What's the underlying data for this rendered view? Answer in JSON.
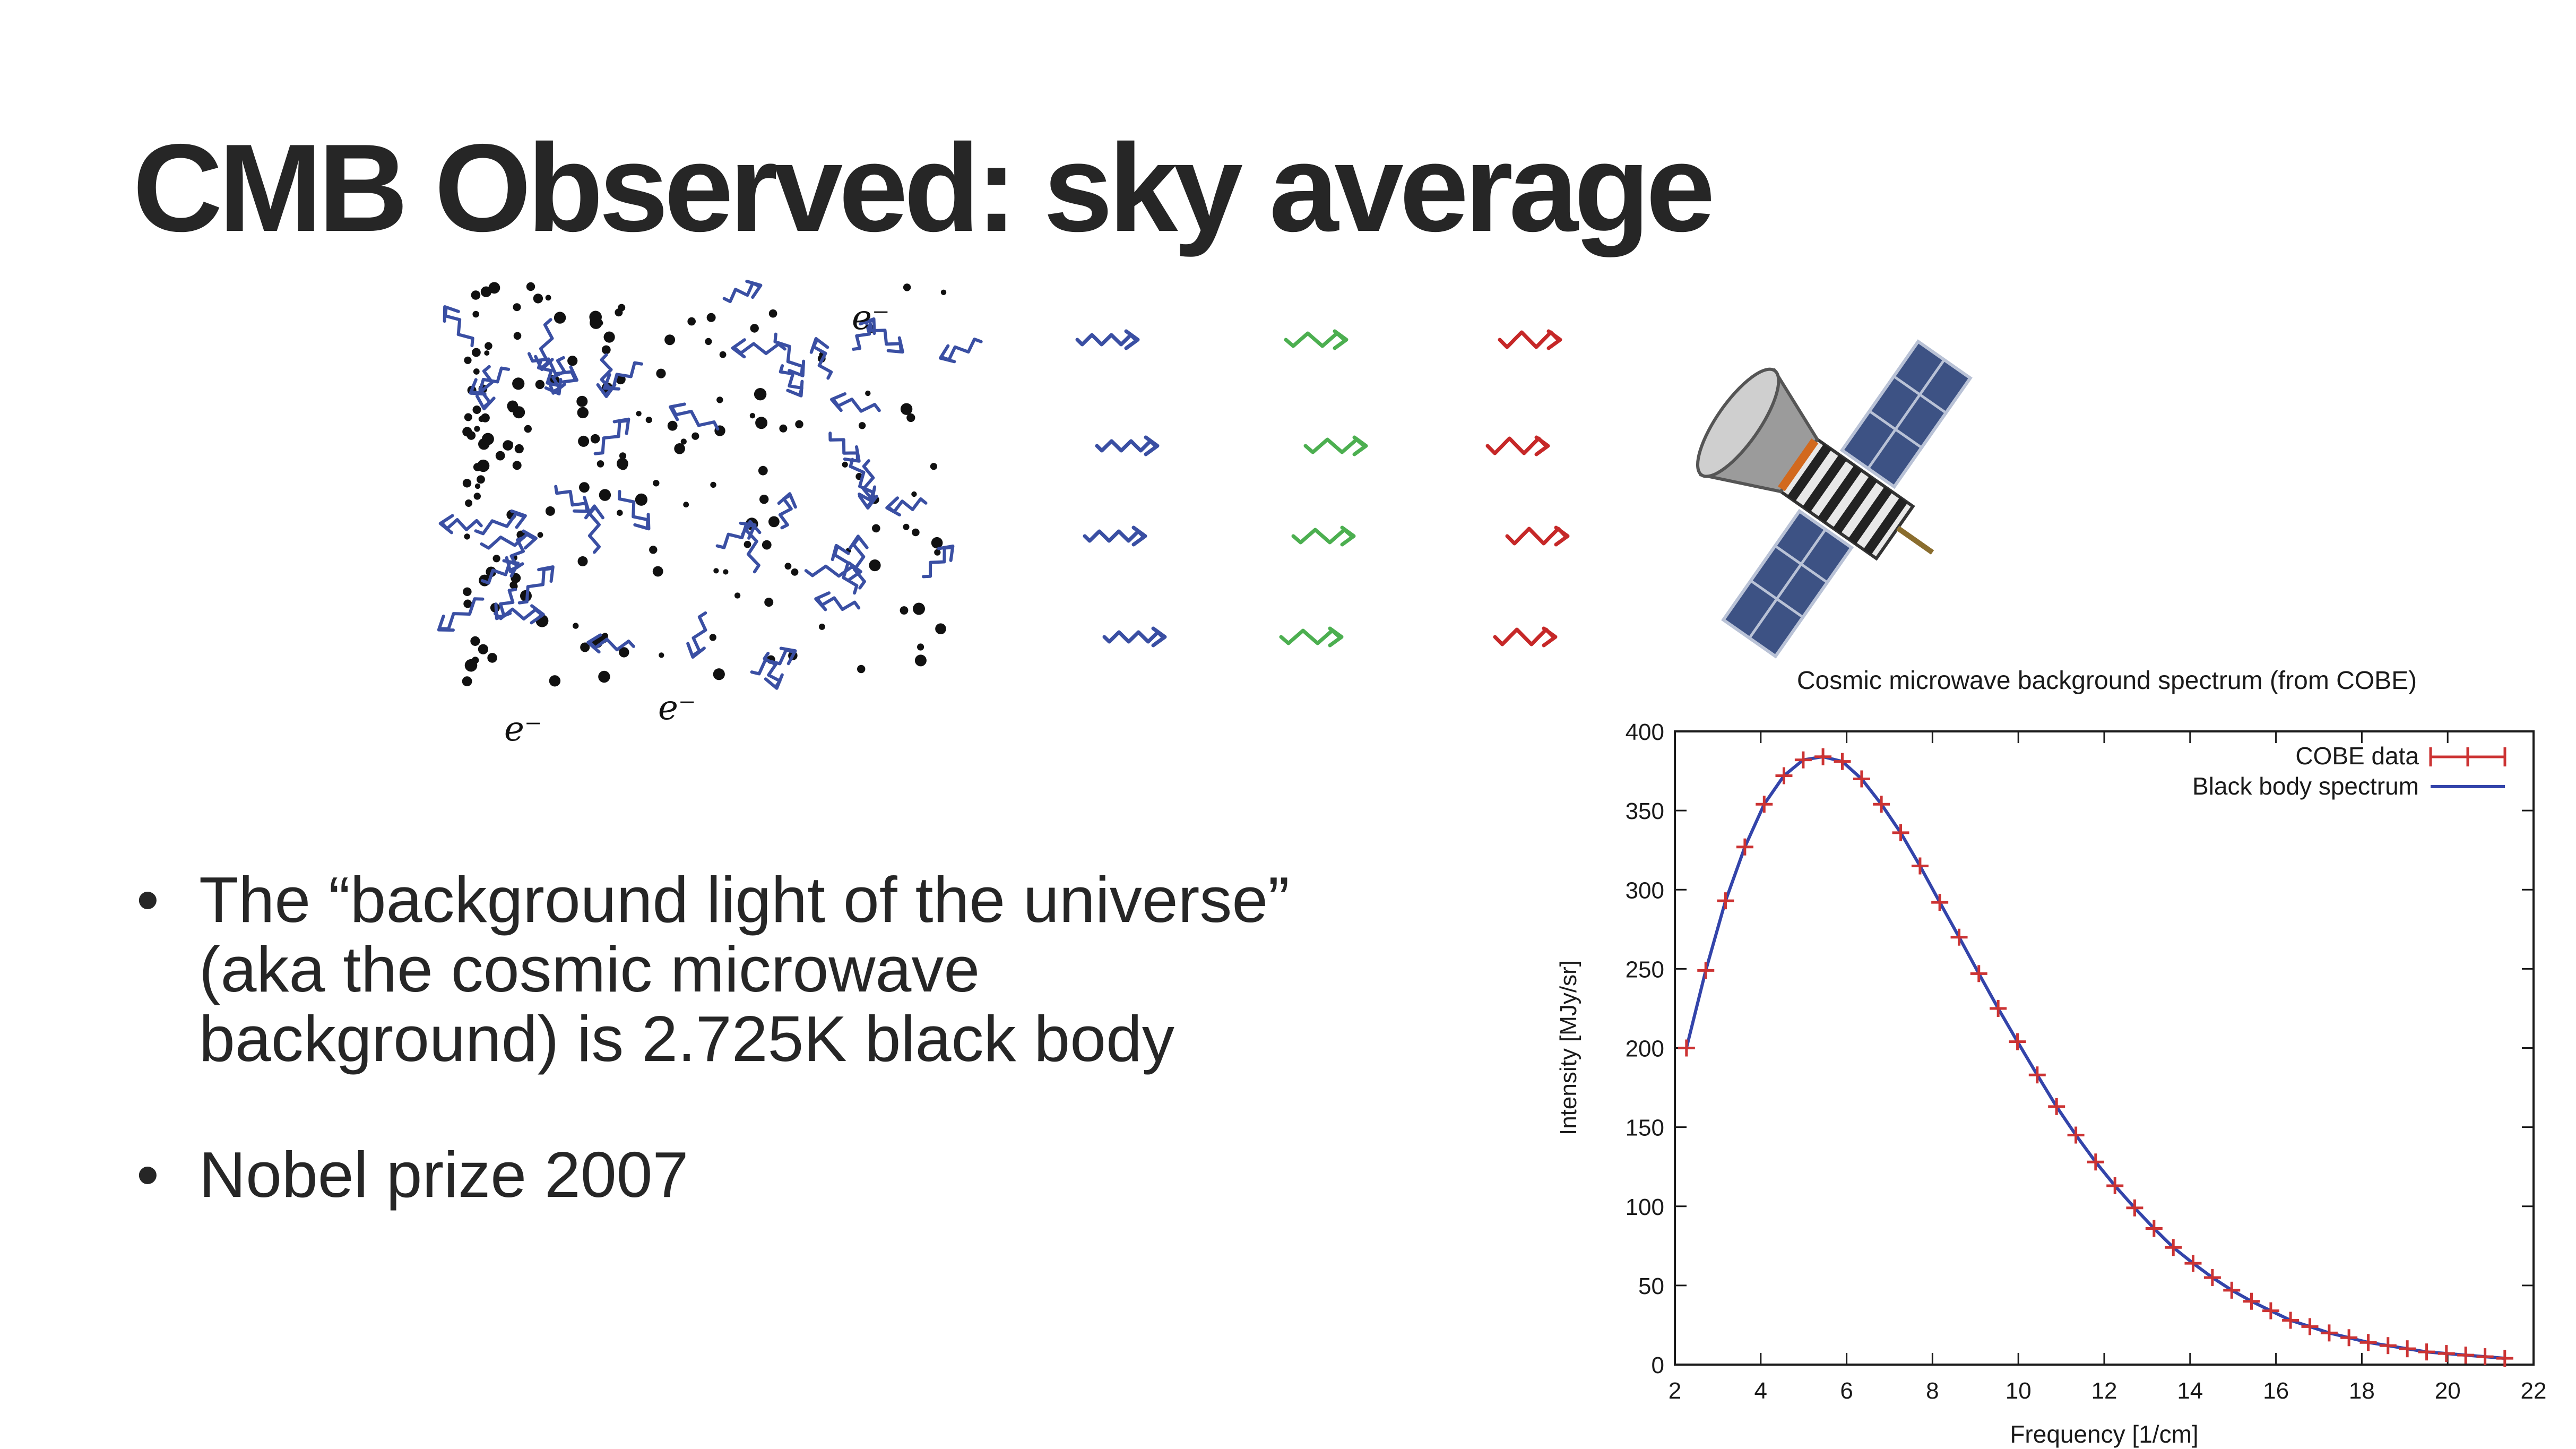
{
  "slide": {
    "title": "CMB Observed: sky average",
    "bullets": [
      {
        "text": "The “background light of the universe” (aka the cosmic microwave background) is 2.725K black body"
      },
      {
        "text": "Nobel prize 2007"
      }
    ],
    "sketch_labels": [
      "e⁻",
      "e⁻",
      "e⁻"
    ],
    "colors": {
      "photons_hot": "#3a4fa3",
      "photons_mid": "#4caf50",
      "photons_cool": "#c62828",
      "electrons": "#111111"
    }
  },
  "chart_data": {
    "type": "line",
    "title": "Cosmic microwave background spectrum (from COBE)",
    "xlabel": "Frequency [1/cm]",
    "ylabel": "Intensity [MJy/sr]",
    "xlim": [
      2,
      22
    ],
    "ylim": [
      0,
      400
    ],
    "xticks": [
      2,
      4,
      6,
      8,
      10,
      12,
      14,
      16,
      18,
      20,
      22
    ],
    "yticks": [
      0,
      50,
      100,
      150,
      200,
      250,
      300,
      350,
      400
    ],
    "legend_position": "top-right",
    "grid": false,
    "series": [
      {
        "name": "COBE data",
        "style": "errorbar-points",
        "color": "#cc3333",
        "x": [
          2.27,
          2.72,
          3.18,
          3.63,
          4.08,
          4.54,
          4.99,
          5.45,
          5.9,
          6.35,
          6.81,
          7.26,
          7.71,
          8.17,
          8.62,
          9.08,
          9.53,
          9.98,
          10.44,
          10.89,
          11.34,
          11.8,
          12.25,
          12.71,
          13.16,
          13.61,
          14.07,
          14.52,
          14.97,
          15.43,
          15.88,
          16.34,
          16.79,
          17.24,
          17.7,
          18.15,
          18.61,
          19.06,
          19.51,
          19.97,
          20.42,
          20.87,
          21.33
        ],
        "y": [
          200,
          249,
          293,
          327,
          354,
          372,
          382,
          384,
          381,
          370,
          354,
          336,
          315,
          292,
          270,
          247,
          225,
          204,
          183,
          163,
          145,
          128,
          113,
          99,
          86,
          74,
          64,
          55,
          47,
          40,
          34,
          28,
          24,
          20,
          17,
          14,
          12,
          10,
          8,
          7,
          6,
          5,
          4
        ]
      },
      {
        "name": "Black body spectrum",
        "style": "line",
        "color": "#3344aa",
        "x": [
          2.27,
          2.72,
          3.18,
          3.63,
          4.08,
          4.54,
          4.99,
          5.45,
          5.9,
          6.35,
          6.81,
          7.26,
          7.71,
          8.17,
          8.62,
          9.08,
          9.53,
          9.98,
          10.44,
          10.89,
          11.34,
          11.8,
          12.25,
          12.71,
          13.16,
          13.61,
          14.07,
          14.52,
          14.97,
          15.43,
          15.88,
          16.34,
          16.79,
          17.24,
          17.7,
          18.15,
          18.61,
          19.06,
          19.51,
          19.97,
          20.42,
          20.87,
          21.33
        ],
        "y": [
          200,
          249,
          293,
          327,
          354,
          372,
          382,
          384,
          381,
          370,
          354,
          336,
          315,
          292,
          270,
          247,
          225,
          204,
          183,
          163,
          145,
          128,
          113,
          99,
          86,
          74,
          64,
          55,
          47,
          40,
          34,
          28,
          24,
          20,
          17,
          14,
          12,
          10,
          8,
          7,
          6,
          5,
          4
        ]
      }
    ]
  }
}
